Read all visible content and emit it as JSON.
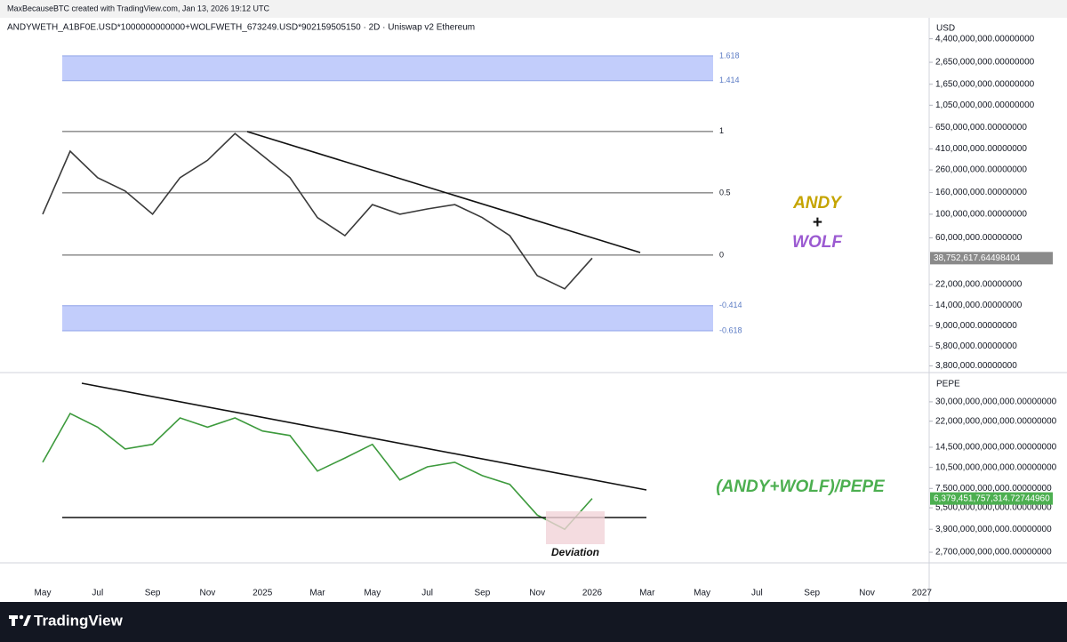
{
  "header": {
    "credit": "MaxBecauseBTC created with TradingView.com, Jan 13, 2026 19:12 UTC"
  },
  "footer": {
    "brand": "TradingView"
  },
  "chart_data": [
    {
      "type": "line",
      "title": "ANDYWETH_A1BF0E.USD*1000000000000+WOLFWETH_673249.USD*902159505150 · 2D · Uniswap v2 Ethereum",
      "y_axis_label": "USD",
      "log_scale": true,
      "color": "#3a3a3a",
      "values": [
        100000000,
        390000000,
        220000000,
        165000000,
        100000000,
        220000000,
        320000000,
        570000000,
        355000000,
        220000000,
        93000000,
        63000000,
        123000000,
        100000000,
        112000000,
        123000000,
        93000000,
        63000000,
        26600000,
        20000000,
        38752617.64498404,
        null,
        null,
        null,
        null,
        null,
        null,
        null,
        null,
        null,
        null,
        null,
        null
      ],
      "last_price": {
        "value": 38752617.64498404,
        "label": "38,752,617.64498404"
      },
      "last_price_color": "#8a8a8a",
      "ylim": [
        3350000,
        4900000000
      ],
      "yticks": [
        {
          "value": 4400000000,
          "label": "4,400,000,000.00000000"
        },
        {
          "value": 2650000000,
          "label": "2,650,000,000.00000000"
        },
        {
          "value": 1650000000,
          "label": "1,650,000,000.00000000"
        },
        {
          "value": 1050000000,
          "label": "1,050,000,000.00000000"
        },
        {
          "value": 650000000,
          "label": "650,000,000.00000000"
        },
        {
          "value": 410000000,
          "label": "410,000,000.00000000"
        },
        {
          "value": 260000000,
          "label": "260,000,000.00000000"
        },
        {
          "value": 160000000,
          "label": "160,000,000.00000000"
        },
        {
          "value": 100000000,
          "label": "100,000,000.00000000"
        },
        {
          "value": 60000000,
          "label": "60,000,000.00000000"
        },
        {
          "value": 22000000,
          "label": "22,000,000.00000000"
        },
        {
          "value": 14000000,
          "label": "14,000,000.00000000"
        },
        {
          "value": 9000000,
          "label": "9,000,000.00000000"
        },
        {
          "value": 5800000,
          "label": "5,800,000.00000000"
        },
        {
          "value": 3800000,
          "label": "3,800,000.00000000"
        }
      ],
      "fib_levels": [
        {
          "value": 3040000000,
          "label": "1.618"
        },
        {
          "value": 1780000000,
          "label": "1.414"
        },
        {
          "value": 596000000,
          "label": "1"
        },
        {
          "value": 158500000,
          "label": "0.5"
        },
        {
          "value": 41400000,
          "label": "0"
        },
        {
          "value": 13900000,
          "label": "-0.414"
        },
        {
          "value": 8100000,
          "label": "-0.618"
        }
      ],
      "zone_color": "#c2cdfb",
      "annotations": [
        {
          "text": "ANDY",
          "color": "#c5a400"
        },
        {
          "text": "+",
          "color": "#111111"
        },
        {
          "text": "WOLF",
          "color": "#9b5ad1"
        }
      ]
    },
    {
      "type": "line",
      "y_axis_label": "PEPE",
      "log_scale": true,
      "color": "#3d9a3d",
      "categories": [
        "May",
        null,
        "Jul",
        null,
        "Sep",
        null,
        "Nov",
        null,
        "2025",
        null,
        "Mar",
        null,
        "May",
        null,
        "Jul",
        null,
        "Sep",
        null,
        "Nov",
        null,
        "2026",
        null,
        "Mar",
        null,
        "May",
        null,
        "Jul",
        null,
        "Sep",
        null,
        "Nov",
        null,
        "2027"
      ],
      "values": [
        11400000000000,
        24900000000000,
        20000000000000,
        14100000000000,
        15200000000000,
        23200000000000,
        20000000000000,
        23200000000000,
        18800000000000,
        17500000000000,
        9900000000000,
        12200000000000,
        15200000000000,
        8600000000000,
        10600000000000,
        11400000000000,
        9200000000000,
        8000000000000,
        4900000000000,
        3900000000000,
        6379451757314.727,
        null,
        null,
        null,
        null,
        null,
        null,
        null,
        null,
        null,
        null,
        null,
        null
      ],
      "last_price": {
        "value": 6379451757314.727,
        "label": "6,379,451,757,314.72744960"
      },
      "last_price_color": "#4caf50",
      "ylim": [
        2310000000000,
        44000000000000
      ],
      "yticks": [
        {
          "value": 30000000000000,
          "label": "30,000,000,000,000.00000000"
        },
        {
          "value": 22000000000000,
          "label": "22,000,000,000,000.00000000"
        },
        {
          "value": 14500000000000,
          "label": "14,500,000,000,000.00000000"
        },
        {
          "value": 10500000000000,
          "label": "10,500,000,000,000.00000000"
        },
        {
          "value": 7500000000000,
          "label": "7,500,000,000,000.00000000"
        },
        {
          "value": 5500000000000,
          "label": "5,500,000,000,000.00000000"
        },
        {
          "value": 3900000000000,
          "label": "3,900,000,000,000.00000000"
        },
        {
          "value": 2700000000000,
          "label": "2,700,000,000,000.00000000"
        }
      ],
      "annotations": [
        {
          "text": "(ANDY+WOLF)/PEPE",
          "color": "#4caf50"
        },
        {
          "text": "Deviation",
          "color": "#111111"
        }
      ]
    }
  ]
}
